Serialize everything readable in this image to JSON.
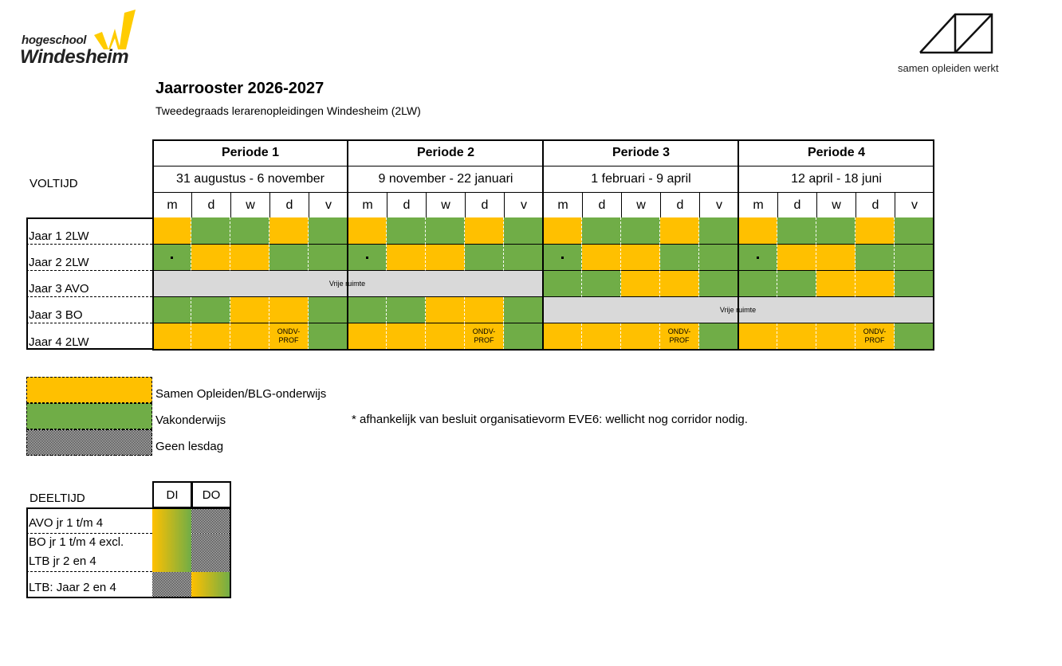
{
  "logos": {
    "windesheim_small": "hogeschool",
    "windesheim_big": "Windesheim",
    "samen": "samen opleiden werkt"
  },
  "title": "Jaarrooster 2026-2027",
  "subtitle": "Tweedegraads lerarenopleidingen Windesheim (2LW)",
  "colors": {
    "samen_opleiden": "#ffc000",
    "vakonderwijs": "#70ad47",
    "vrije_ruimte": "#d9d9d9"
  },
  "voltijd": {
    "label": "VOLTIJD",
    "periods": [
      {
        "name": "Periode 1",
        "dates": "31 augustus - 6 november"
      },
      {
        "name": "Periode 2",
        "dates": "9 november - 22 januari"
      },
      {
        "name": "Periode 3",
        "dates": "1 februari - 9 april"
      },
      {
        "name": "Periode 4",
        "dates": "12 april - 18 juni"
      }
    ],
    "days": [
      "m",
      "d",
      "w",
      "d",
      "v"
    ],
    "rows": [
      {
        "label": "Jaar 1 2LW",
        "periods": [
          [
            "Y",
            "G",
            "G",
            "Y",
            "G"
          ],
          [
            "Y",
            "G",
            "G",
            "Y",
            "G"
          ],
          [
            "Y",
            "G",
            "G",
            "Y",
            "G"
          ],
          [
            "Y",
            "G",
            "G",
            "Y",
            "G"
          ]
        ]
      },
      {
        "label": "Jaar 2 2LW",
        "periods": [
          [
            "G.",
            "Y",
            "Y",
            "G",
            "G"
          ],
          [
            "G.",
            "Y",
            "Y",
            "G",
            "G"
          ],
          [
            "G.",
            "Y",
            "Y",
            "G",
            "G"
          ],
          [
            "G.",
            "Y",
            "Y",
            "G",
            "G"
          ]
        ]
      },
      {
        "label": "Jaar 3 AVO",
        "span": {
          "from": 0,
          "to": 1,
          "text": "Vrije ruimte"
        },
        "periods": [
          null,
          null,
          [
            "G",
            "G",
            "Y",
            "Y",
            "G"
          ],
          [
            "G",
            "G",
            "Y",
            "Y",
            "G"
          ]
        ]
      },
      {
        "label": "Jaar 3 BO",
        "span": {
          "from": 2,
          "to": 3,
          "text": "Vrije ruimte"
        },
        "periods": [
          [
            "G",
            "G",
            "Y",
            "Y",
            "G"
          ],
          [
            "G",
            "G",
            "Y",
            "Y",
            "G"
          ],
          null,
          null
        ]
      },
      {
        "label": "Jaar 4 2LW",
        "periods": [
          [
            "Y",
            "Y",
            "Y",
            "Y:ONDV-PROF",
            "G"
          ],
          [
            "Y",
            "Y",
            "Y",
            "Y:ONDV-PROF",
            "G"
          ],
          [
            "Y",
            "Y",
            "Y",
            "Y:ONDV-PROF",
            "G"
          ],
          [
            "Y",
            "Y",
            "Y",
            "Y:ONDV-PROF",
            "G"
          ]
        ]
      }
    ]
  },
  "legend": {
    "items": [
      {
        "label": "Samen Opleiden/BLG-onderwijs",
        "style": "Y"
      },
      {
        "label": "Vakonderwijs",
        "style": "G"
      },
      {
        "label": "Geen lesdag",
        "style": "pattern"
      }
    ],
    "note": "* afhankelijk van besluit organisatievorm EVE6: wellicht nog corridor nodig."
  },
  "deeltijd": {
    "label": "DEELTIJD",
    "columns": [
      "DI",
      "DO"
    ],
    "rows": [
      {
        "label": [
          "AVO jr 1 t/m 4"
        ],
        "cells": [
          "grad",
          "pattern"
        ]
      },
      {
        "label": [
          "BO jr 1 t/m 4  excl.",
          "LTB jr 2 en 4"
        ],
        "cells": [
          "grad",
          "pattern"
        ]
      },
      {
        "label": [
          "LTB: Jaar 2 en 4"
        ],
        "cells": [
          "pattern",
          "grad"
        ]
      }
    ]
  }
}
